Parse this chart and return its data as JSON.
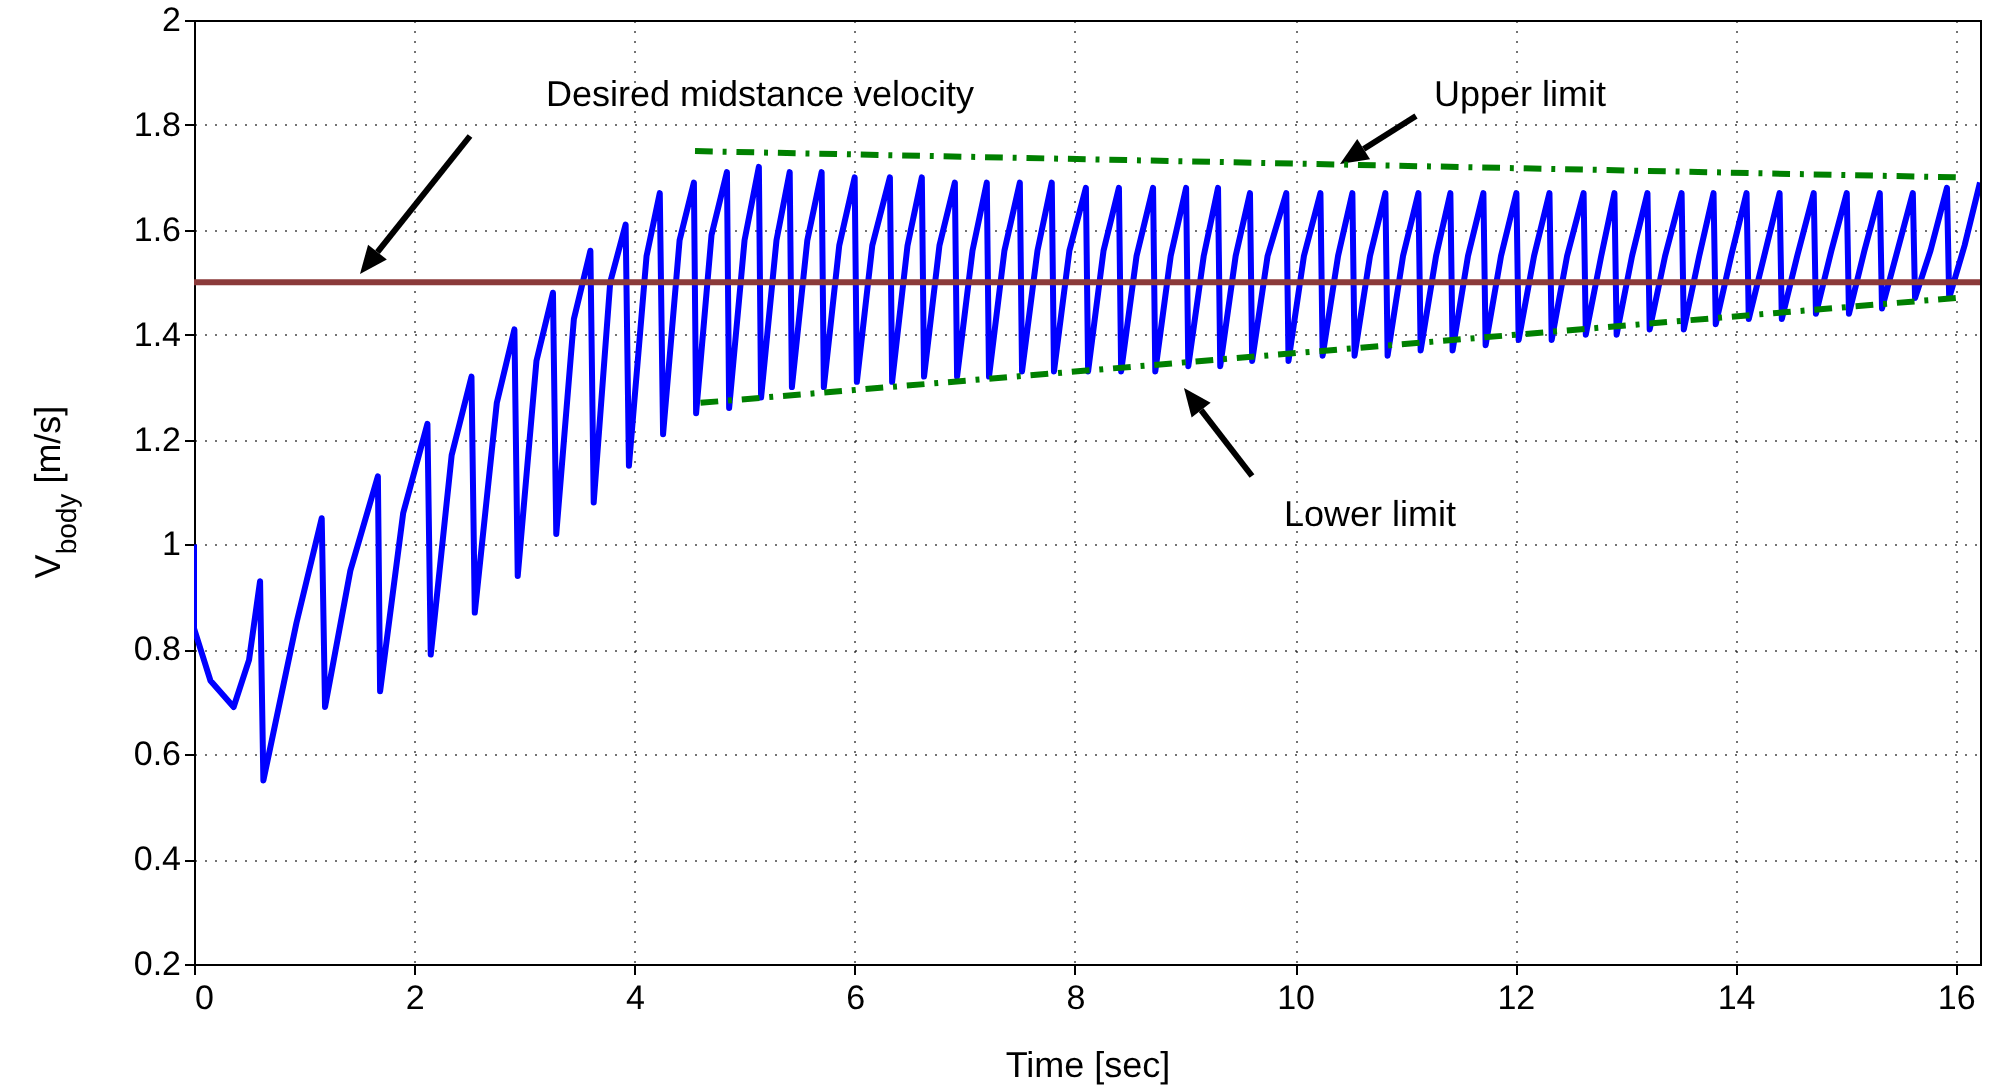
{
  "chart_data": {
    "type": "line",
    "xlabel": "Time [sec]",
    "ylabel": "V$_{body}$ [m/s]",
    "xlim": [
      0,
      16.22
    ],
    "ylim": [
      0.2,
      2
    ],
    "xticks": [
      0,
      2,
      4,
      6,
      8,
      10,
      12,
      14,
      16
    ],
    "yticks": [
      0.2,
      0.4,
      0.6,
      0.8,
      1,
      1.2,
      1.4,
      1.6,
      1.8,
      2
    ],
    "grid": true,
    "series": [
      {
        "type": "line",
        "color": "#0000ff",
        "line_style": "solid",
        "x": [
          0,
          0,
          0.15,
          0.36,
          0.5,
          0.6,
          0.63,
          0.93,
          1.16,
          1.19,
          1.42,
          1.67,
          1.69,
          1.9,
          2.12,
          2.15,
          2.34,
          2.52,
          2.55,
          2.75,
          2.91,
          2.94,
          3.11,
          3.26,
          3.29,
          3.45,
          3.6,
          3.63,
          3.78,
          3.92,
          3.95,
          4.11,
          4.23,
          4.26,
          4.41,
          4.54,
          4.56,
          4.7,
          4.84,
          4.86,
          5,
          5.13,
          5.15,
          5.29,
          5.41,
          5.43,
          5.57,
          5.7,
          5.72,
          5.86,
          6,
          6.02,
          6.16,
          6.32,
          6.34,
          6.48,
          6.61,
          6.63,
          6.77,
          6.91,
          6.93,
          7.07,
          7.2,
          7.22,
          7.36,
          7.5,
          7.52,
          7.66,
          7.79,
          7.81,
          7.95,
          8.1,
          8.12,
          8.26,
          8.4,
          8.42,
          8.56,
          8.71,
          8.73,
          8.87,
          9.01,
          9.03,
          9.17,
          9.3,
          9.32,
          9.46,
          9.59,
          9.61,
          9.75,
          9.92,
          9.94,
          10.08,
          10.23,
          10.25,
          10.39,
          10.52,
          10.54,
          10.68,
          10.82,
          10.84,
          10.98,
          11.12,
          11.14,
          11.28,
          11.41,
          11.43,
          11.57,
          11.71,
          11.73,
          11.87,
          12.01,
          12.03,
          12.17,
          12.31,
          12.33,
          12.47,
          12.62,
          12.64,
          12.78,
          12.9,
          12.92,
          13.06,
          13.2,
          13.22,
          13.36,
          13.51,
          13.53,
          13.67,
          13.8,
          13.82,
          13.96,
          14.1,
          14.12,
          14.26,
          14.4,
          14.42,
          14.56,
          14.71,
          14.73,
          14.87,
          15.01,
          15.03,
          15.17,
          15.31,
          15.33,
          15.47,
          15.61,
          15.63,
          15.77,
          15.92,
          15.94,
          16.08,
          16.22
        ],
        "values": [
          1,
          0.84,
          0.74,
          0.69,
          0.78,
          0.93,
          0.55,
          0.85,
          1.05,
          0.69,
          0.95,
          1.13,
          0.72,
          1.06,
          1.23,
          0.79,
          1.17,
          1.32,
          0.87,
          1.27,
          1.41,
          0.94,
          1.35,
          1.48,
          1.02,
          1.43,
          1.56,
          1.08,
          1.5,
          1.61,
          1.15,
          1.55,
          1.67,
          1.21,
          1.58,
          1.69,
          1.25,
          1.59,
          1.71,
          1.26,
          1.58,
          1.72,
          1.28,
          1.58,
          1.71,
          1.3,
          1.58,
          1.71,
          1.3,
          1.57,
          1.7,
          1.31,
          1.57,
          1.7,
          1.31,
          1.57,
          1.7,
          1.32,
          1.57,
          1.69,
          1.32,
          1.56,
          1.69,
          1.32,
          1.56,
          1.69,
          1.33,
          1.56,
          1.69,
          1.33,
          1.56,
          1.68,
          1.33,
          1.56,
          1.68,
          1.33,
          1.55,
          1.68,
          1.33,
          1.55,
          1.68,
          1.34,
          1.55,
          1.68,
          1.34,
          1.55,
          1.67,
          1.35,
          1.55,
          1.67,
          1.35,
          1.55,
          1.67,
          1.36,
          1.55,
          1.67,
          1.36,
          1.55,
          1.67,
          1.36,
          1.55,
          1.67,
          1.37,
          1.55,
          1.67,
          1.37,
          1.55,
          1.67,
          1.38,
          1.55,
          1.67,
          1.39,
          1.55,
          1.67,
          1.39,
          1.55,
          1.67,
          1.4,
          1.55,
          1.67,
          1.4,
          1.55,
          1.67,
          1.41,
          1.55,
          1.67,
          1.41,
          1.55,
          1.67,
          1.42,
          1.55,
          1.67,
          1.43,
          1.55,
          1.67,
          1.43,
          1.55,
          1.67,
          1.44,
          1.56,
          1.67,
          1.44,
          1.56,
          1.67,
          1.45,
          1.56,
          1.67,
          1.47,
          1.56,
          1.68,
          1.47,
          1.57,
          1.69
        ]
      },
      {
        "type": "line",
        "color": "#008000",
        "line_style": "dashed",
        "x": [
          4.55,
          16
        ],
        "values": [
          1.75,
          1.7
        ]
      },
      {
        "type": "line",
        "color": "#008000",
        "line_style": "dashed",
        "x": [
          4.6,
          16
        ],
        "values": [
          1.27,
          1.47
        ]
      }
    ],
    "ref_lines": [
      {
        "axis": "y",
        "value": 1.5,
        "color": "#8b3a3a"
      }
    ],
    "annotations": [
      "Desired midstance velocity",
      "Upper limit",
      "Lower limit"
    ]
  }
}
